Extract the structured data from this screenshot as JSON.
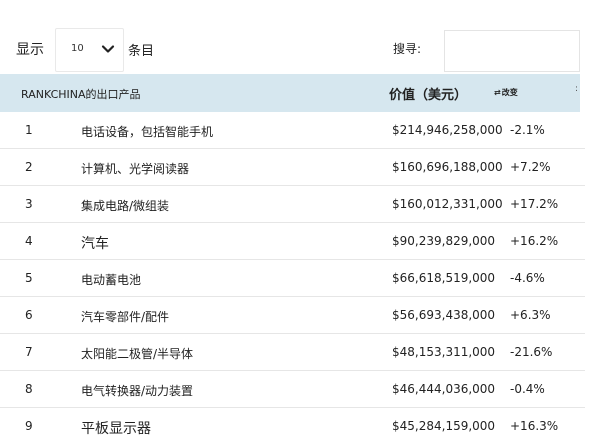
{
  "controls": {
    "show_label": "显示",
    "page_length": "10",
    "entries_label": "条目",
    "search_label": "搜寻:",
    "search_value": ""
  },
  "table": {
    "headers": {
      "product": "RANKCHINA的出口产品",
      "value": "价值（美元）",
      "change": "改变",
      "more": ":"
    },
    "rows": [
      {
        "rank": "1",
        "product": "电话设备，包括智能手机",
        "value": "$214,946,258,000",
        "change": "-2.1%"
      },
      {
        "rank": "2",
        "product": "计算机、光学阅读器",
        "value": "$160,696,188,000",
        "change": "+7.2%"
      },
      {
        "rank": "3",
        "product": "集成电路/微组装",
        "value": "$160,012,331,000",
        "change": "+17.2%"
      },
      {
        "rank": "4",
        "product": "汽车",
        "value": "$90,239,829,000",
        "change": "+16.2%"
      },
      {
        "rank": "5",
        "product": "电动蓄电池",
        "value": "$66,618,519,000",
        "change": "-4.6%"
      },
      {
        "rank": "6",
        "product": "汽车零部件/配件",
        "value": "$56,693,438,000",
        "change": "+6.3%"
      },
      {
        "rank": "7",
        "product": "太阳能二极管/半导体",
        "value": "$48,153,311,000",
        "change": "-21.6%"
      },
      {
        "rank": "8",
        "product": "电气转换器/动力装置",
        "value": "$46,444,036,000",
        "change": "-0.4%"
      },
      {
        "rank": "9",
        "product": "平板显示器",
        "value": "$45,284,159,000",
        "change": "+16.3%"
      }
    ]
  },
  "colors": {
    "header_bg": "#d6e7ef",
    "row_divider": "#e6e6e6"
  },
  "icons": {
    "length_dropdown": "chevron-down-icon",
    "sort": "sort-icon"
  }
}
